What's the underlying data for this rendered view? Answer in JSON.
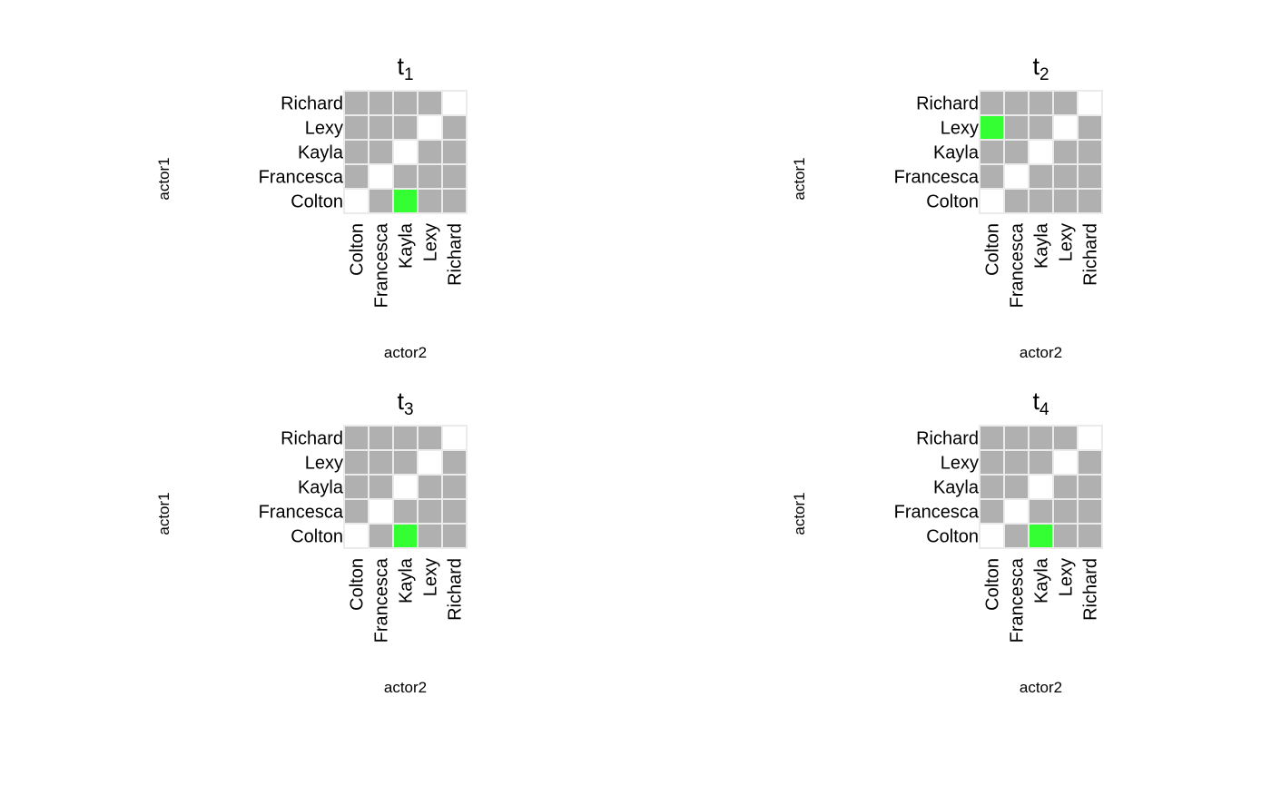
{
  "colors": {
    "present": "#b0b0b0",
    "absent": "#ffffff",
    "highlight": "#33ff33",
    "cell_border": "#ebebeb"
  },
  "chart_data": [
    {
      "type": "heatmap",
      "title": "t1",
      "title_base": "t",
      "title_subscript": "1",
      "xlabel": "actor2",
      "ylabel": "actor1",
      "x_categories": [
        "Colton",
        "Francesca",
        "Kayla",
        "Lexy",
        "Richard"
      ],
      "y_categories": [
        "Colton",
        "Francesca",
        "Kayla",
        "Lexy",
        "Richard"
      ],
      "legend": "none",
      "cells": [
        [
          "absent",
          "present",
          "highlight",
          "present",
          "present"
        ],
        [
          "present",
          "absent",
          "present",
          "present",
          "present"
        ],
        [
          "present",
          "present",
          "absent",
          "present",
          "present"
        ],
        [
          "present",
          "present",
          "present",
          "absent",
          "present"
        ],
        [
          "present",
          "present",
          "present",
          "present",
          "absent"
        ]
      ]
    },
    {
      "type": "heatmap",
      "title": "t2",
      "title_base": "t",
      "title_subscript": "2",
      "xlabel": "actor2",
      "ylabel": "actor1",
      "x_categories": [
        "Colton",
        "Francesca",
        "Kayla",
        "Lexy",
        "Richard"
      ],
      "y_categories": [
        "Colton",
        "Francesca",
        "Kayla",
        "Lexy",
        "Richard"
      ],
      "legend": "none",
      "cells": [
        [
          "absent",
          "present",
          "present",
          "present",
          "present"
        ],
        [
          "present",
          "absent",
          "present",
          "present",
          "present"
        ],
        [
          "present",
          "present",
          "absent",
          "present",
          "present"
        ],
        [
          "highlight",
          "present",
          "present",
          "absent",
          "present"
        ],
        [
          "present",
          "present",
          "present",
          "present",
          "absent"
        ]
      ]
    },
    {
      "type": "heatmap",
      "title": "t3",
      "title_base": "t",
      "title_subscript": "3",
      "xlabel": "actor2",
      "ylabel": "actor1",
      "x_categories": [
        "Colton",
        "Francesca",
        "Kayla",
        "Lexy",
        "Richard"
      ],
      "y_categories": [
        "Colton",
        "Francesca",
        "Kayla",
        "Lexy",
        "Richard"
      ],
      "legend": "none",
      "cells": [
        [
          "absent",
          "present",
          "highlight",
          "present",
          "present"
        ],
        [
          "present",
          "absent",
          "present",
          "present",
          "present"
        ],
        [
          "present",
          "present",
          "absent",
          "present",
          "present"
        ],
        [
          "present",
          "present",
          "present",
          "absent",
          "present"
        ],
        [
          "present",
          "present",
          "present",
          "present",
          "absent"
        ]
      ]
    },
    {
      "type": "heatmap",
      "title": "t4",
      "title_base": "t",
      "title_subscript": "4",
      "xlabel": "actor2",
      "ylabel": "actor1",
      "x_categories": [
        "Colton",
        "Francesca",
        "Kayla",
        "Lexy",
        "Richard"
      ],
      "y_categories": [
        "Colton",
        "Francesca",
        "Kayla",
        "Lexy",
        "Richard"
      ],
      "legend": "none",
      "cells": [
        [
          "absent",
          "present",
          "highlight",
          "present",
          "present"
        ],
        [
          "present",
          "absent",
          "present",
          "present",
          "present"
        ],
        [
          "present",
          "present",
          "absent",
          "present",
          "present"
        ],
        [
          "present",
          "present",
          "present",
          "absent",
          "present"
        ],
        [
          "present",
          "present",
          "present",
          "present",
          "absent"
        ]
      ]
    }
  ]
}
